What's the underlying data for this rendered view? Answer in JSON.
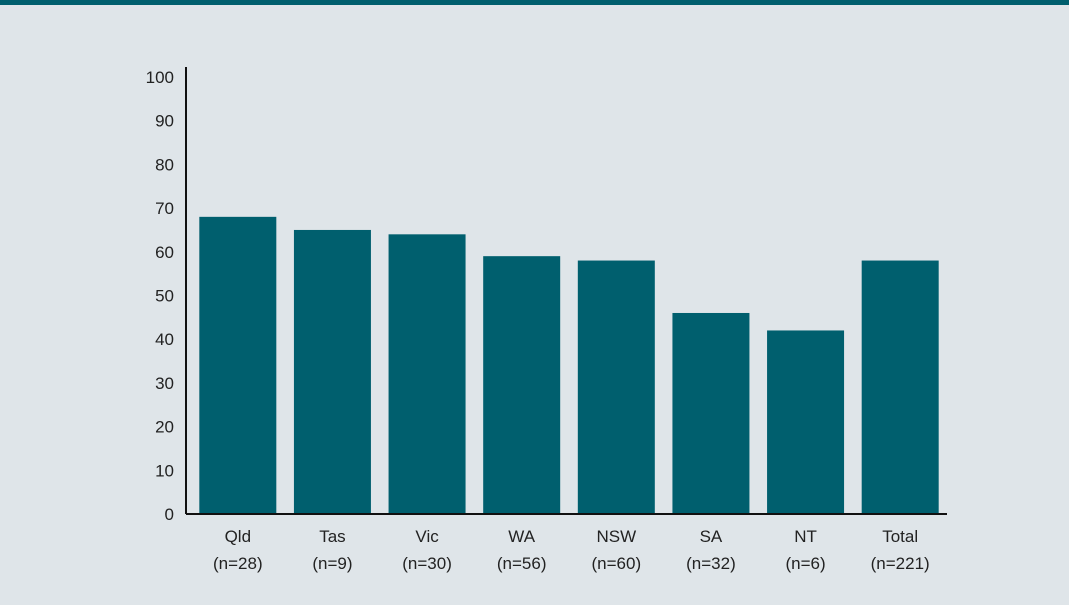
{
  "colors": {
    "background": "#dfe5e9",
    "bar": "#005f6e",
    "top_rule": "#005f6e",
    "axis": "#111111"
  },
  "chart_data": {
    "type": "bar",
    "title": "",
    "xlabel": "",
    "ylabel": "",
    "ylim": [
      0,
      100
    ],
    "yticks": [
      0,
      10,
      20,
      30,
      40,
      50,
      60,
      70,
      80,
      90,
      100
    ],
    "grid": false,
    "legend": "none",
    "categories": [
      {
        "name": "Qld",
        "n": "(n=28)"
      },
      {
        "name": "Tas",
        "n": "(n=9)"
      },
      {
        "name": "Vic",
        "n": "(n=30)"
      },
      {
        "name": "WA",
        "n": "(n=56)"
      },
      {
        "name": "NSW",
        "n": "(n=60)"
      },
      {
        "name": "SA",
        "n": "(n=32)"
      },
      {
        "name": "NT",
        "n": "(n=6)"
      },
      {
        "name": "Total",
        "n": "(n=221)"
      }
    ],
    "values": [
      68,
      65,
      64,
      59,
      58,
      46,
      42,
      58
    ]
  }
}
